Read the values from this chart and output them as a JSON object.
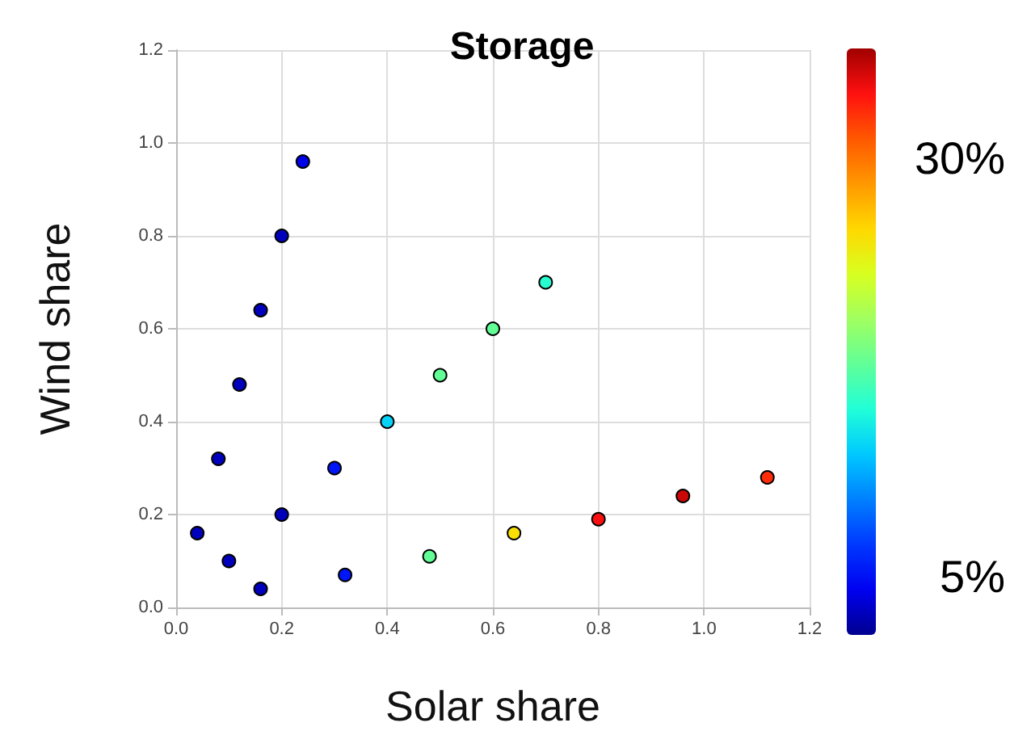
{
  "chart_data": {
    "type": "scatter",
    "title": "Storage",
    "xlabel": "Solar share",
    "ylabel": "Wind share",
    "clabel": null,
    "x": [
      0.24,
      0.2,
      0.16,
      0.12,
      0.08,
      0.04,
      0.1,
      0.16,
      0.2,
      0.3,
      0.32,
      0.4,
      0.48,
      0.5,
      0.6,
      0.64,
      0.7,
      0.8,
      0.96,
      1.12
    ],
    "values": [
      0.96,
      0.8,
      0.64,
      0.48,
      0.32,
      0.16,
      0.1,
      0.04,
      0.2,
      0.3,
      0.07,
      0.4,
      0.11,
      0.5,
      0.6,
      0.16,
      0.7,
      0.19,
      0.24,
      0.28
    ],
    "cvalues": [
      3.75,
      2.5,
      2.5,
      2.5,
      2.5,
      2.5,
      2.5,
      2.5,
      2.5,
      5,
      5,
      12.5,
      17.5,
      17.5,
      17.5,
      25,
      15,
      33.75,
      35,
      32.5
    ],
    "clim": [
      1.25,
      36.25
    ],
    "cticks": [
      {
        "value": 5,
        "label": "5%"
      },
      {
        "value": 30,
        "label": "30%"
      }
    ],
    "xlim": [
      0,
      1.2
    ],
    "xticks": [
      {
        "value": 0,
        "label": "0.0"
      },
      0.2,
      0.4,
      0.6,
      0.8,
      {
        "value": 1,
        "label": "1.0"
      },
      1.2
    ],
    "ylim": [
      0,
      1.2
    ],
    "yticks": [
      {
        "value": 0,
        "label": "0.0"
      },
      0.2,
      0.4,
      0.6,
      0.8,
      {
        "value": 1,
        "label": "1.0"
      },
      1.2
    ],
    "grid": true,
    "marker": "circle"
  }
}
